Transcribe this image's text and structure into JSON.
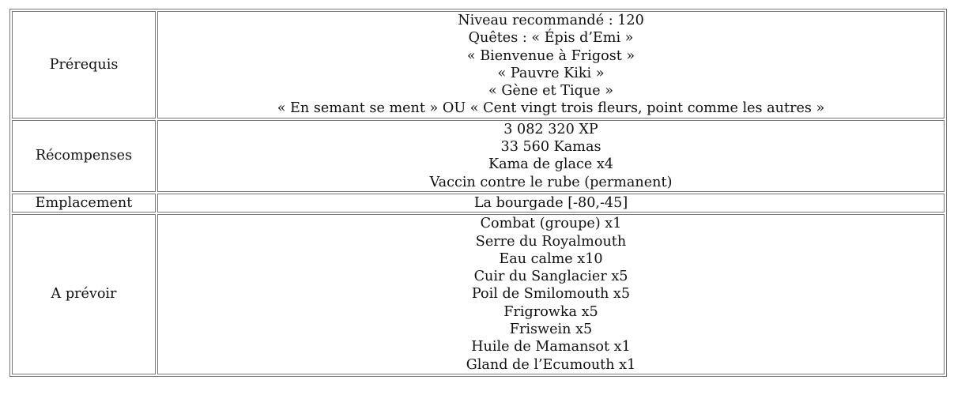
{
  "rows": [
    {
      "label": "Prérequis",
      "lines": [
        "Niveau recommandé : 120",
        "Quêtes : « Épis d’Emi »",
        "« Bienvenue à Frigost »",
        "« Pauvre Kiki »",
        "« Gène et Tique »",
        "« En semant se ment » OU « Cent vingt trois fleurs, point comme les autres »"
      ]
    },
    {
      "label": "Récompenses",
      "lines": [
        "3 082 320 XP",
        "33 560 Kamas",
        "Kama de glace x4",
        "Vaccin contre le rube (permanent)"
      ]
    },
    {
      "label": "Emplacement",
      "lines": [
        "La bourgade [-80,-45]"
      ]
    },
    {
      "label": "A prévoir",
      "lines": [
        "Combat (groupe) x1",
        "Serre du Royalmouth",
        "Eau calme x10",
        "Cuir du Sanglacier x5",
        "Poil de Smilomouth x5",
        "Frigrowka x5",
        "Friswein x5",
        "Huile de Mamansot x1",
        "Gland de l’Ecumouth x1"
      ]
    }
  ]
}
